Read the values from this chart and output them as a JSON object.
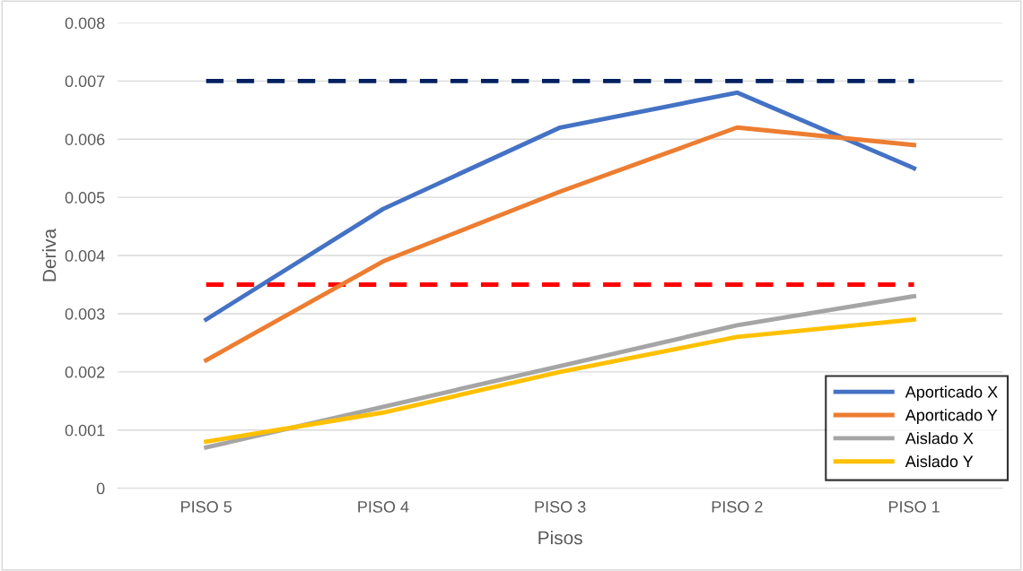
{
  "chart_data": {
    "type": "line",
    "xlabel": "Pisos",
    "ylabel": "Deriva",
    "categories": [
      "PISO 5",
      "PISO 4",
      "PISO 3",
      "PISO 2",
      "PISO 1"
    ],
    "series": [
      {
        "name": "Aporticado X",
        "color": "#4472c4",
        "values": [
          0.0029,
          0.0048,
          0.0062,
          0.0068,
          0.0055
        ]
      },
      {
        "name": "Aporticado Y",
        "color": "#ed7d31",
        "values": [
          0.0022,
          0.0039,
          0.0051,
          0.0062,
          0.0059
        ]
      },
      {
        "name": "Aislado X",
        "color": "#a5a5a5",
        "values": [
          0.0007,
          0.0014,
          0.0021,
          0.0028,
          0.0033
        ]
      },
      {
        "name": "Aislado Y",
        "color": "#ffc000",
        "values": [
          0.0008,
          0.0013,
          0.002,
          0.0026,
          0.0029
        ]
      }
    ],
    "ref_lines": [
      {
        "axis": "y",
        "value": 0.007,
        "color": "#002060",
        "line_style": "dashed"
      },
      {
        "axis": "y",
        "value": 0.0035,
        "color": "#ff0000",
        "line_style": "dashed"
      }
    ],
    "ylim": [
      0,
      0.008
    ],
    "yticks": [
      0,
      0.001,
      0.002,
      0.003,
      0.004,
      0.005,
      0.006,
      0.007,
      0.008
    ],
    "grid": "y",
    "legend": "bottom right",
    "marker": "none",
    "line_style": "solid"
  }
}
